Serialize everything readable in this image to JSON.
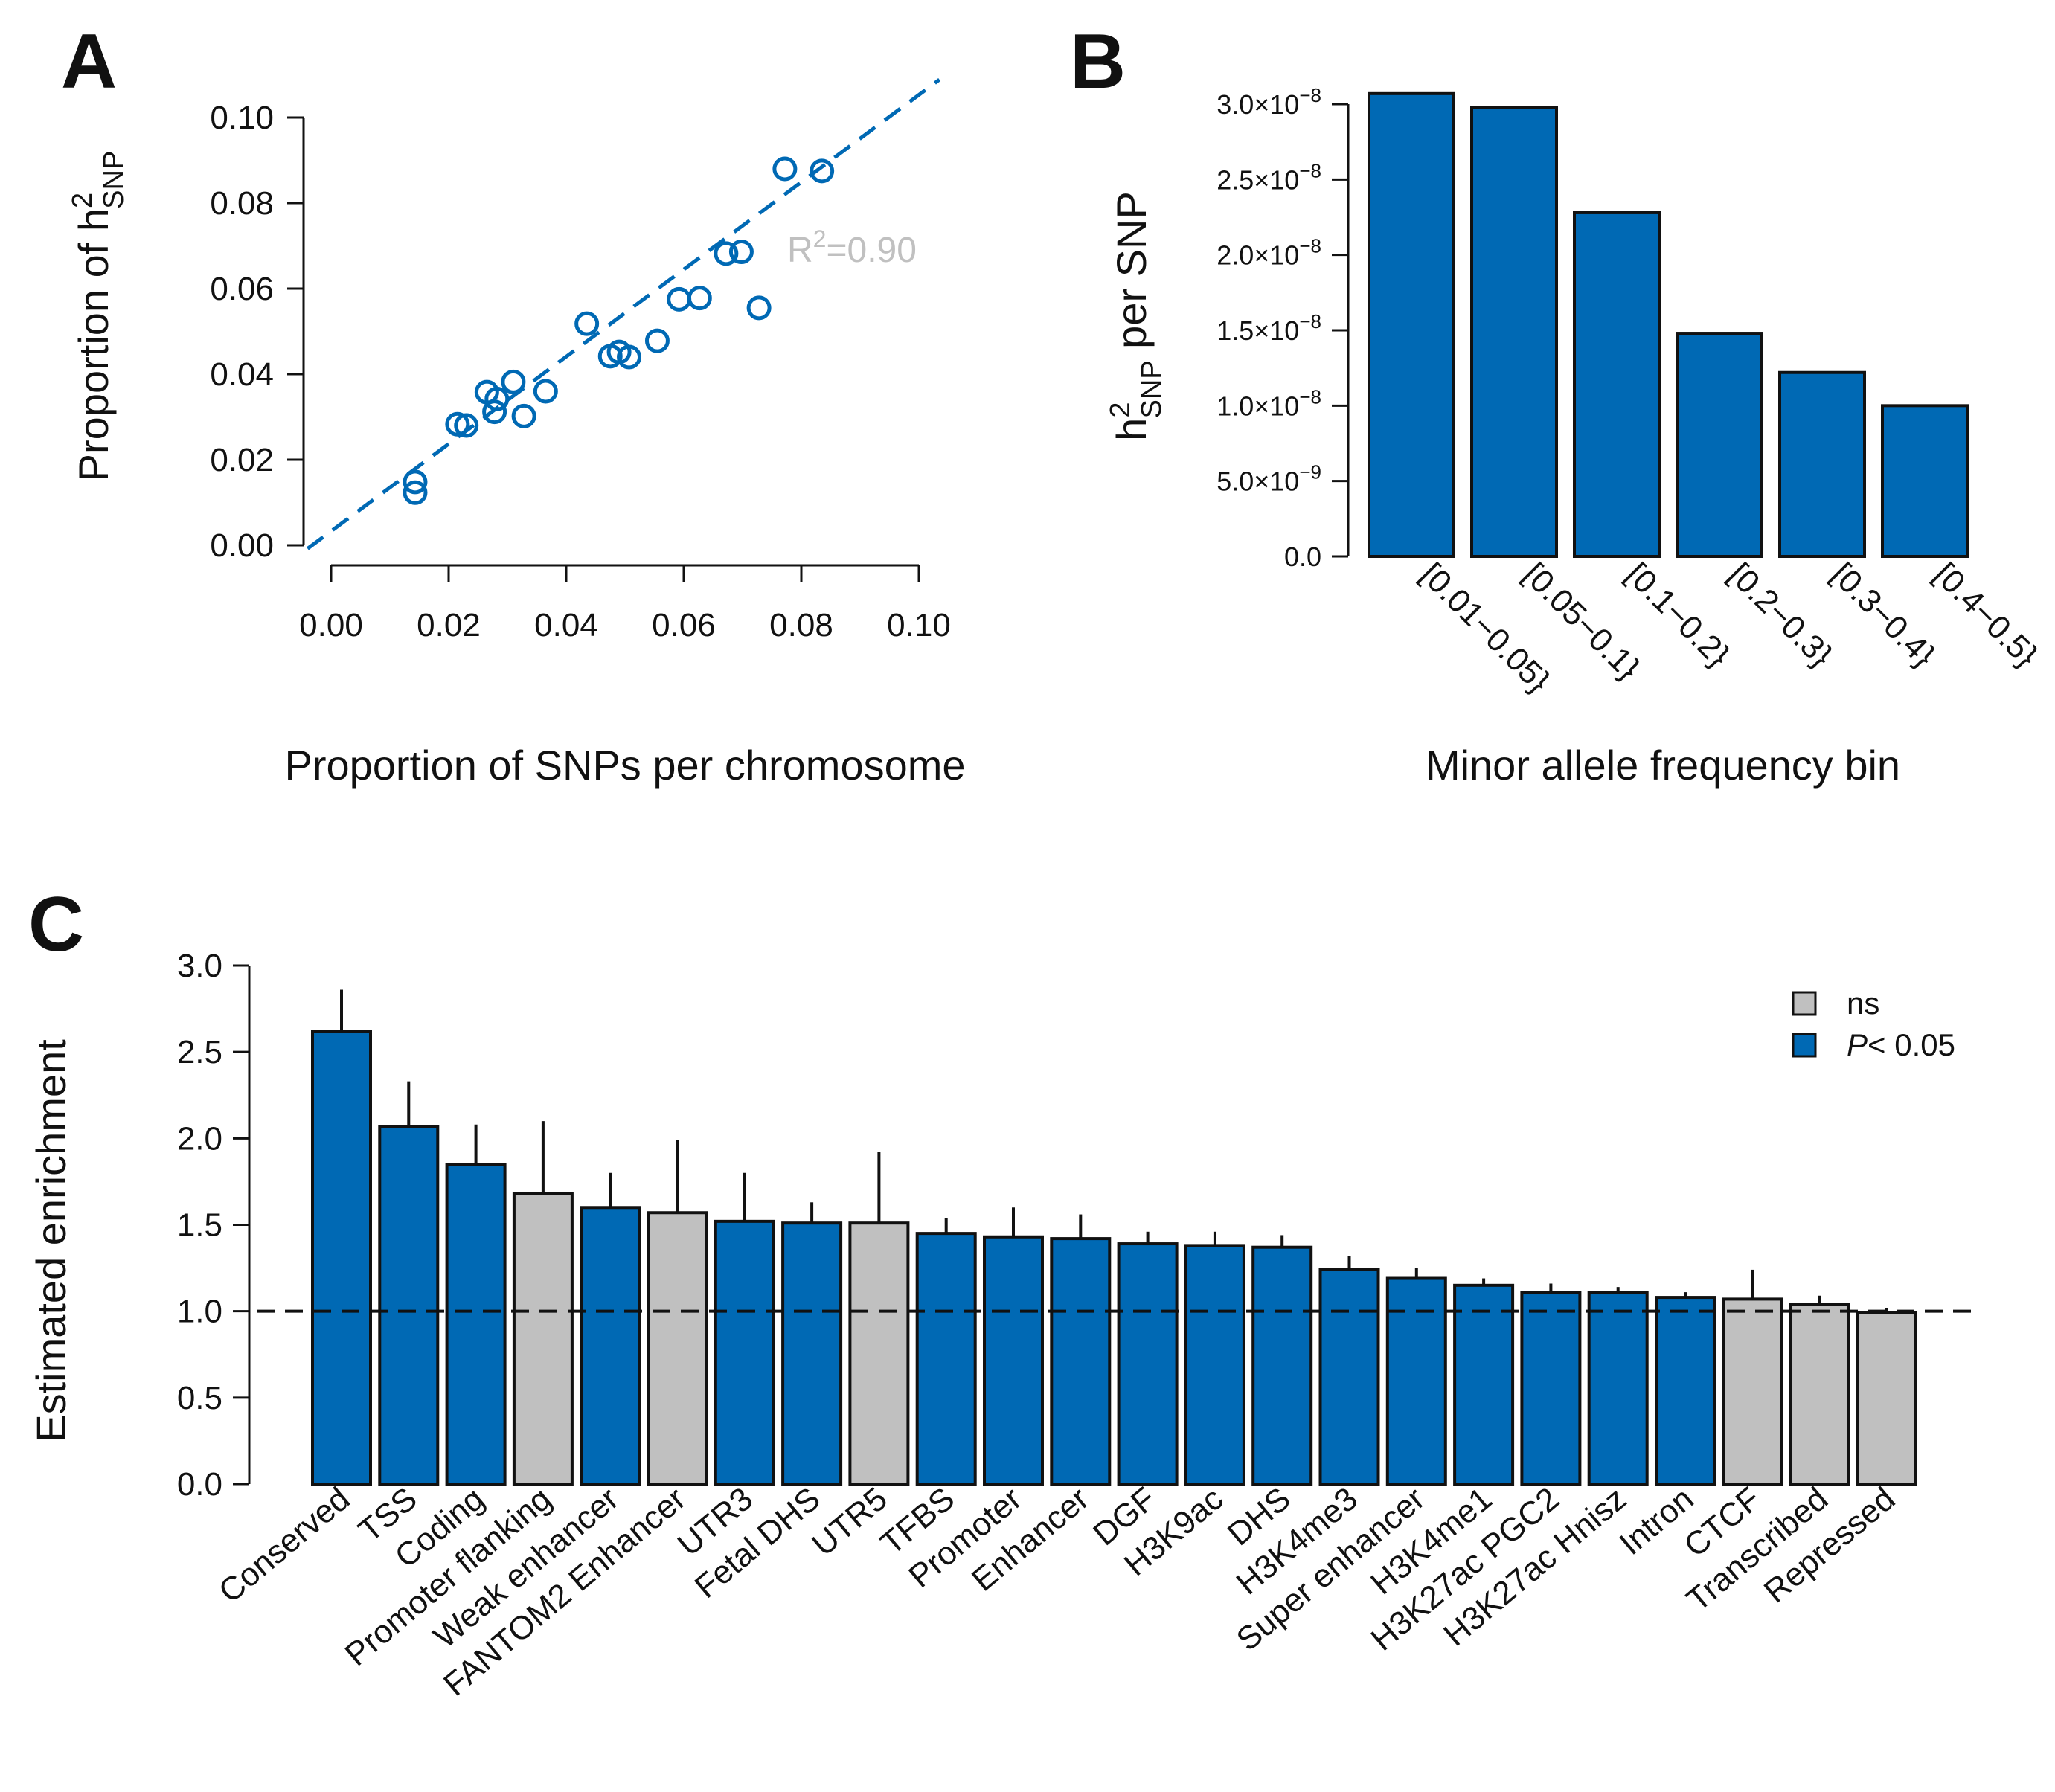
{
  "colors": {
    "blue": "#0069b4",
    "grey": "#c0c0c0",
    "axis": "#111111",
    "r2_text": "#c0c0c0"
  },
  "chart_data": [
    {
      "panel": "A",
      "type": "scatter",
      "xlabel": "Proportion of SNPs per chromosome",
      "ylabel_prefix": "Proportion of h",
      "ylabel_sup": "2",
      "ylabel_sub": "SNP",
      "xlim": [
        0,
        0.1
      ],
      "ylim": [
        0,
        0.1
      ],
      "xticks": [
        "0.00",
        "0.02",
        "0.04",
        "0.06",
        "0.08",
        "0.10"
      ],
      "yticks": [
        "0.00",
        "0.02",
        "0.04",
        "0.06",
        "0.08",
        "0.10"
      ],
      "xtick_values": [
        0,
        0.02,
        0.04,
        0.06,
        0.08,
        0.1
      ],
      "ytick_values": [
        0,
        0.02,
        0.04,
        0.06,
        0.08,
        0.1
      ],
      "annotation": {
        "prefix": "R",
        "sup": "2",
        "suffix": "=0.90"
      },
      "fit_line": {
        "slope": 1.02,
        "intercept": 0.0033,
        "style": "dashed"
      },
      "points": [
        {
          "x": 0.0143,
          "y": 0.0148
        },
        {
          "x": 0.0143,
          "y": 0.0123
        },
        {
          "x": 0.0215,
          "y": 0.0283
        },
        {
          "x": 0.023,
          "y": 0.028
        },
        {
          "x": 0.0265,
          "y": 0.0358
        },
        {
          "x": 0.0278,
          "y": 0.0312
        },
        {
          "x": 0.0282,
          "y": 0.0342
        },
        {
          "x": 0.031,
          "y": 0.0382
        },
        {
          "x": 0.0328,
          "y": 0.0302
        },
        {
          "x": 0.0365,
          "y": 0.036
        },
        {
          "x": 0.0435,
          "y": 0.0518
        },
        {
          "x": 0.0475,
          "y": 0.0442
        },
        {
          "x": 0.049,
          "y": 0.0452
        },
        {
          "x": 0.0507,
          "y": 0.044
        },
        {
          "x": 0.0555,
          "y": 0.0478
        },
        {
          "x": 0.0592,
          "y": 0.0575
        },
        {
          "x": 0.0627,
          "y": 0.0578
        },
        {
          "x": 0.0672,
          "y": 0.0682
        },
        {
          "x": 0.0698,
          "y": 0.0686
        },
        {
          "x": 0.0728,
          "y": 0.0555
        },
        {
          "x": 0.0772,
          "y": 0.088
        },
        {
          "x": 0.0835,
          "y": 0.0875
        }
      ]
    },
    {
      "panel": "B",
      "type": "bar",
      "xlabel": "Minor allele frequency bin",
      "ylabel_prefix": "h",
      "ylabel_sup": "2",
      "ylabel_sub": "SNP",
      "ylabel_suffix": " per SNP",
      "ylim": [
        0,
        3e-08
      ],
      "ytick_values": [
        0,
        5e-09,
        1e-08,
        1.5e-08,
        2e-08,
        2.5e-08,
        3e-08
      ],
      "yticks": [
        {
          "base": "0.0",
          "exp": ""
        },
        {
          "base": "5.0×10",
          "exp": "−9"
        },
        {
          "base": "1.0×10",
          "exp": "−8"
        },
        {
          "base": "1.5×10",
          "exp": "−8"
        },
        {
          "base": "2.0×10",
          "exp": "−8"
        },
        {
          "base": "2.5×10",
          "exp": "−8"
        },
        {
          "base": "3.0×10",
          "exp": "−8"
        }
      ],
      "categories": [
        "[0.01−0.05}",
        "[0.05−0.1}",
        "[0.1−0.2}",
        "[0.2−0.3}",
        "[0.3−0.4}",
        "[0.4−0.5}"
      ],
      "values": [
        3.07e-08,
        2.98e-08,
        2.28e-08,
        1.48e-08,
        1.22e-08,
        1e-08
      ]
    },
    {
      "panel": "C",
      "type": "bar",
      "xlabel": "",
      "ylabel": "Estimated enrichment",
      "ylim": [
        0,
        3.0
      ],
      "yticks": [
        "0.0",
        "0.5",
        "1.0",
        "1.5",
        "2.0",
        "2.5",
        "3.0"
      ],
      "ytick_values": [
        0,
        0.5,
        1.0,
        1.5,
        2.0,
        2.5,
        3.0
      ],
      "reference_line": 1.0,
      "legend": [
        {
          "label": "ns",
          "italic": false,
          "status": "ns"
        },
        {
          "label_italic": "P",
          "label_rest": "< 0.05",
          "status": "sig"
        }
      ],
      "categories": [
        "Conserved",
        "TSS",
        "Coding",
        "Promoter flanking",
        "Weak enhancer",
        "FANTOM2 Enhancer",
        "UTR3",
        "Fetal DHS",
        "UTR5",
        "TFBS",
        "Promoter",
        "Enhancer",
        "DGF",
        "H3K9ac",
        "DHS",
        "H3K4me3",
        "Super enhancer",
        "H3K4me1",
        "H3K27ac PGC2",
        "H3K27ac Hnisz",
        "Intron",
        "CTCF",
        "Transcribed",
        "Repressed"
      ],
      "values": [
        2.62,
        2.07,
        1.85,
        1.68,
        1.6,
        1.57,
        1.52,
        1.51,
        1.51,
        1.45,
        1.43,
        1.42,
        1.39,
        1.38,
        1.37,
        1.24,
        1.19,
        1.15,
        1.11,
        1.11,
        1.08,
        1.07,
        1.04,
        0.99
      ],
      "error_upper": [
        2.86,
        2.33,
        2.08,
        2.1,
        1.8,
        1.99,
        1.8,
        1.63,
        1.92,
        1.54,
        1.6,
        1.56,
        1.46,
        1.46,
        1.44,
        1.32,
        1.25,
        1.19,
        1.16,
        1.14,
        1.11,
        1.24,
        1.09,
        1.02
      ],
      "significance": [
        "sig",
        "sig",
        "sig",
        "ns",
        "sig",
        "ns",
        "sig",
        "sig",
        "ns",
        "sig",
        "sig",
        "sig",
        "sig",
        "sig",
        "sig",
        "sig",
        "sig",
        "sig",
        "sig",
        "sig",
        "sig",
        "ns",
        "ns",
        "ns"
      ]
    }
  ]
}
